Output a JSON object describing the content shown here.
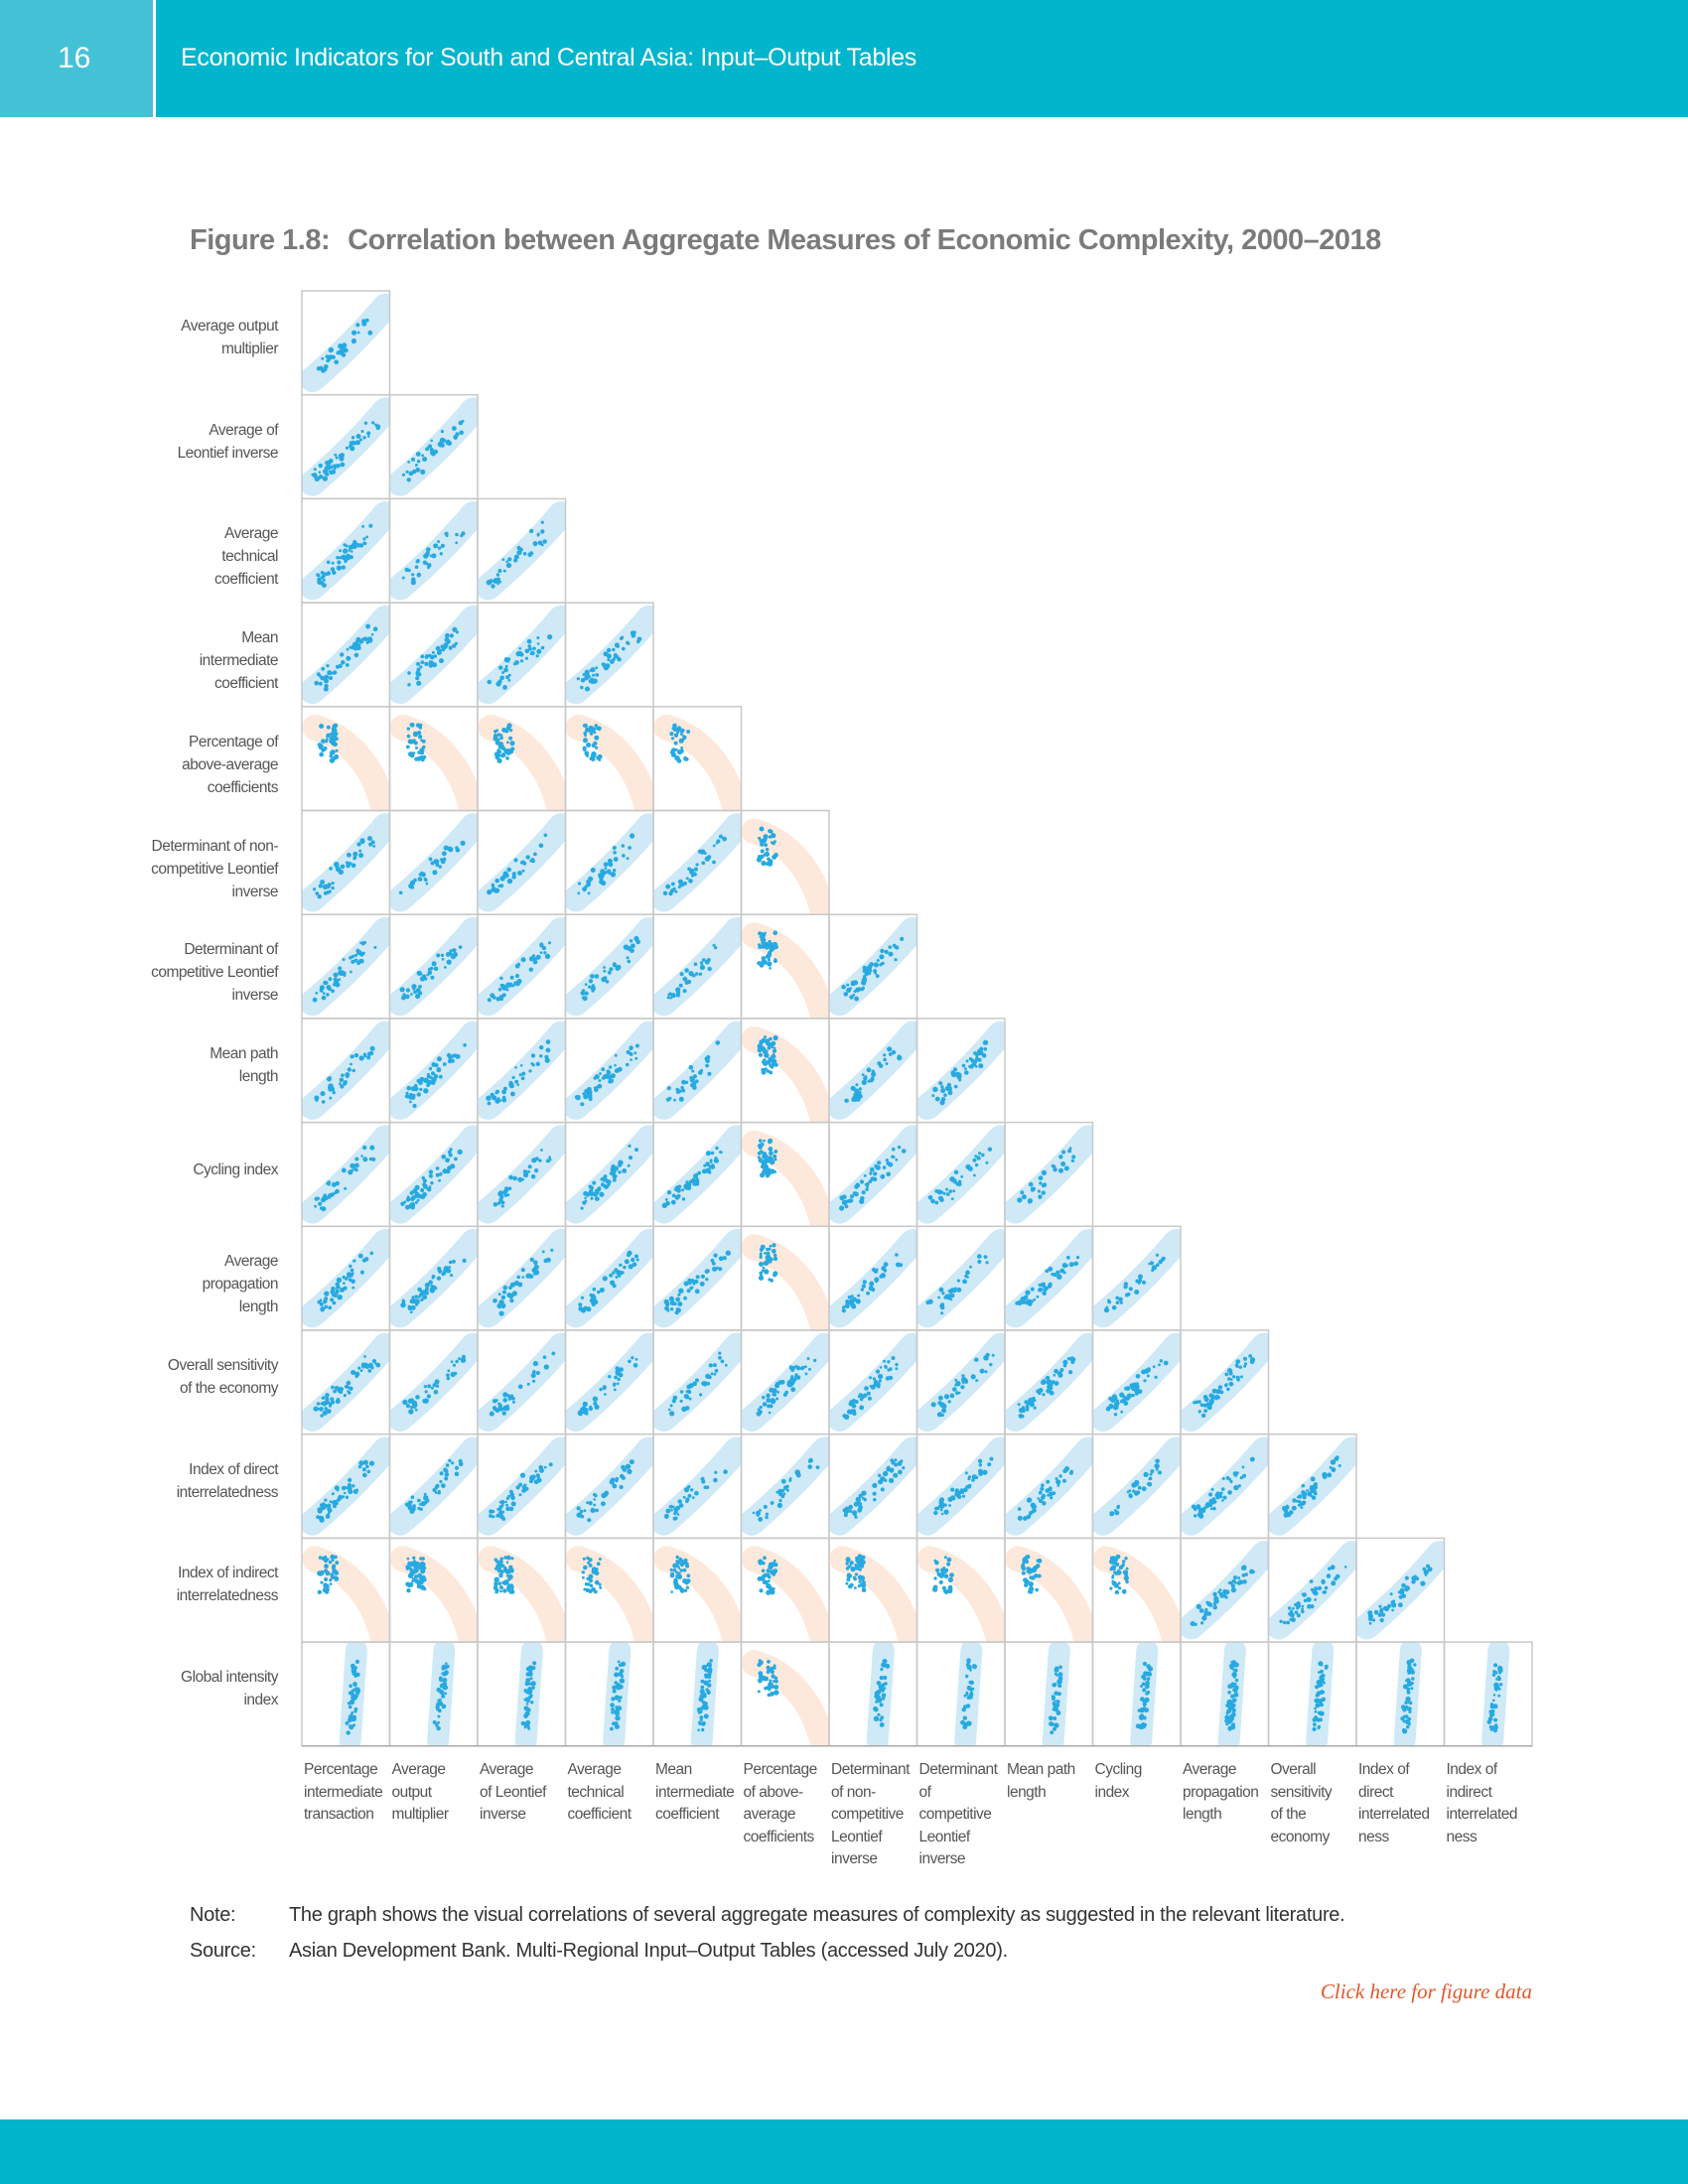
{
  "header": {
    "page_number": "16",
    "running_title": "Economic Indicators for South and Central Asia: Input–Output Tables"
  },
  "figure": {
    "number": "Figure 1.8:",
    "title": "Correlation between Aggregate Measures of Economic Complexity, 2000–2018",
    "row_labels": [
      [
        "Average output",
        "multiplier"
      ],
      [
        "Average of",
        "Leontief inverse"
      ],
      [
        "Average",
        "technical",
        "coefficient"
      ],
      [
        "Mean",
        "intermediate",
        "coefficient"
      ],
      [
        "Percentage of",
        "above-average",
        "coefficients"
      ],
      [
        "Determinant of non-",
        "competitive Leontief",
        "inverse"
      ],
      [
        "Determinant of",
        "competitive Leontief",
        "inverse"
      ],
      [
        "Mean path",
        "length"
      ],
      [
        "Cycling index"
      ],
      [
        "Average",
        "propagation",
        "length"
      ],
      [
        "Overall sensitivity",
        "of the economy"
      ],
      [
        "Index of direct",
        "interrelatedness"
      ],
      [
        "Index of indirect",
        "interrelatedness"
      ],
      [
        "Global intensity",
        "index"
      ]
    ],
    "column_labels": [
      [
        "Percentage",
        "intermediate",
        "transaction"
      ],
      [
        "Average",
        "output",
        "multiplier"
      ],
      [
        "Average",
        "of Leontief",
        "inverse"
      ],
      [
        "Average",
        "technical",
        "coefficient"
      ],
      [
        "Mean",
        "intermediate",
        "coefficient"
      ],
      [
        "Percentage",
        "of above-",
        "average",
        "coefficients"
      ],
      [
        "Determinant",
        "of non-",
        "competitive",
        "Leontief",
        "inverse"
      ],
      [
        "Determinant",
        "of",
        "competitive",
        "Leontief",
        "inverse"
      ],
      [
        "Mean path",
        "length"
      ],
      [
        "Cycling",
        "index"
      ],
      [
        "Average",
        "propagation",
        "length"
      ],
      [
        "Overall",
        "sensitivity",
        "of the",
        "economy"
      ],
      [
        "Index of",
        "direct",
        "interrelated",
        "ness"
      ],
      [
        "Index of",
        "indirect",
        "interrelated",
        "ness"
      ]
    ],
    "correlation_sign_by_row": [
      "+",
      "++",
      "+++",
      "++++",
      "-----",
      "+++++-",
      "+++++-+",
      "+++++-++",
      "+++++-+++",
      "+++++-++++",
      "+++++++++++",
      "++++++++++++",
      "----------+++",
      "+++++-++++++++"
    ],
    "colors": {
      "positive_band": "#cfe9f6",
      "negative_band": "#fde9dc",
      "points": "#27a9e1",
      "link": "#e0582b",
      "brand": "#00b5cc"
    }
  },
  "note": {
    "label": "Note:",
    "text": "The graph shows the visual correlations of several aggregate measures of complexity as suggested in the relevant literature."
  },
  "source": {
    "label": "Source:",
    "text": "Asian Development Bank. Multi-Regional Input–Output Tables (accessed July 2020)."
  },
  "link": {
    "label": "Click here for figure data"
  }
}
